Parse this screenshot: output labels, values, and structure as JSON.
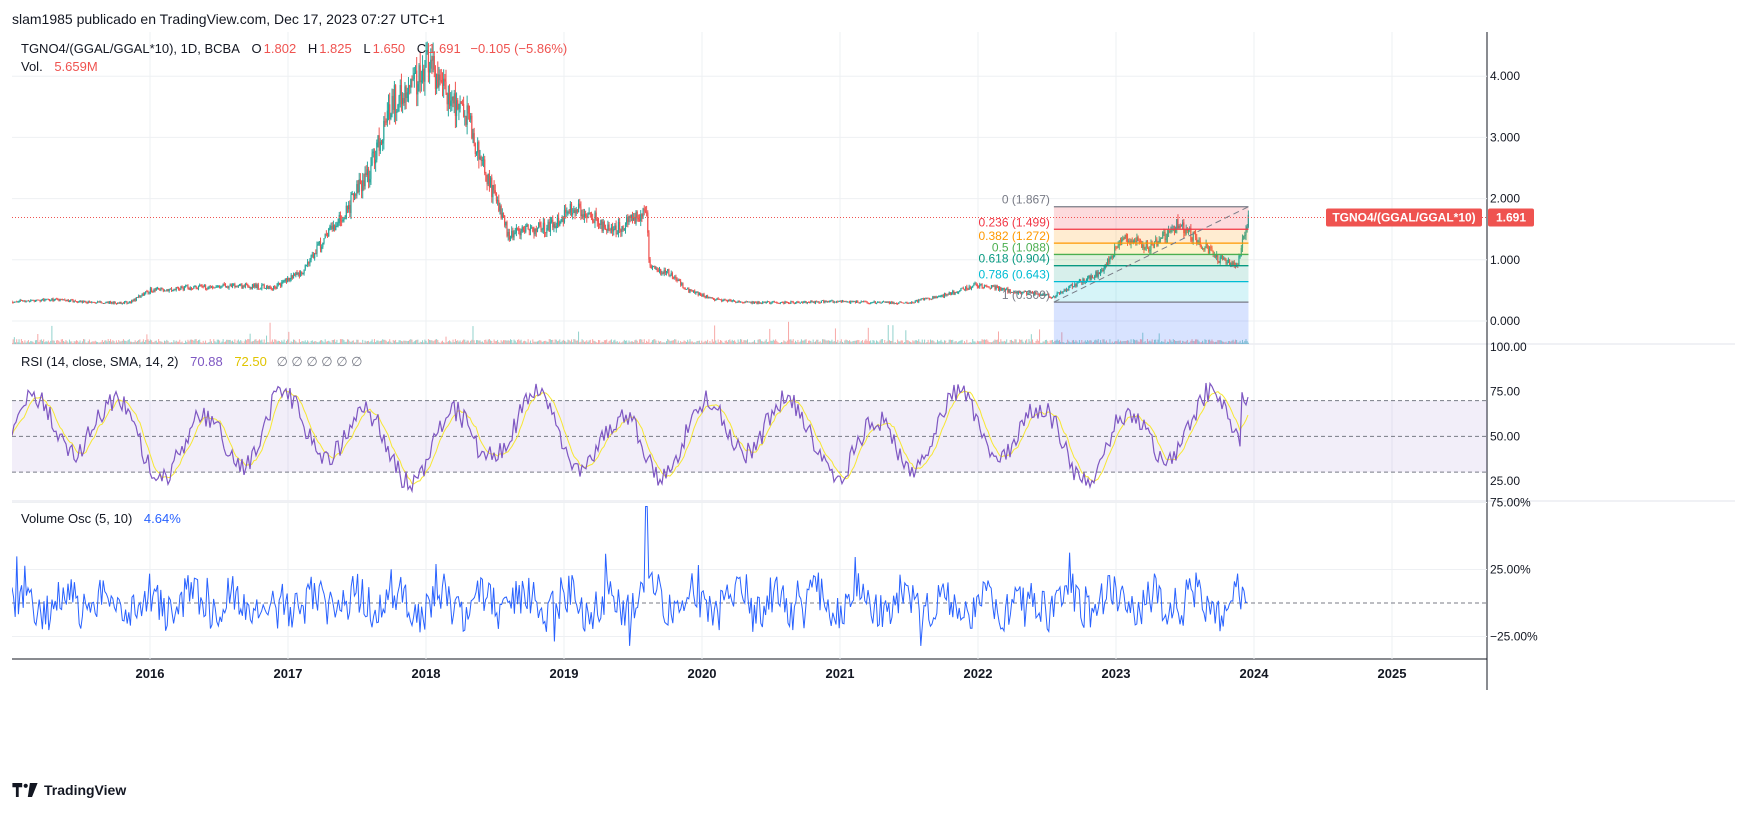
{
  "header": {
    "publisher": "slam1985 publicado en TradingView.com, Dec 17, 2023 07:27 UTC+1"
  },
  "footer": {
    "brand": "TradingView"
  },
  "colors": {
    "up": "#26a69a",
    "down": "#ef5350",
    "rsi": "#7e57c2",
    "rsi_ma": "#f7e733",
    "vol_osc": "#2962ff",
    "grid": "#eef0f3"
  },
  "legend": {
    "symbol": "TGNO4/(GGAL/GGAL*10), 1D, BCBA",
    "o_label": "O",
    "o_value": "1.802",
    "h_label": "H",
    "h_value": "1.825",
    "l_label": "L",
    "l_value": "1.650",
    "c_label": "C",
    "c_value": "1.691",
    "change": "−0.105 (−5.86%)",
    "vol_label": "Vol.",
    "vol_value": "5.659M",
    "rsi_label": "RSI (14, close, SMA, 14, 2)",
    "rsi_value": "70.88",
    "rsi_ma_value": "72.50",
    "rsi_extra": "∅ ∅ ∅ ∅ ∅ ∅",
    "vosc_label": "Volume Osc (5, 10)",
    "vosc_value": "4.64%"
  },
  "last_price_label": {
    "symbol": "TGNO4/(GGAL/GGAL*10)",
    "value": "1.691"
  },
  "chart_data": [
    {
      "type": "candlestick",
      "title": "TGNO4/(GGAL/GGAL*10), 1D, BCBA",
      "x_ticks": [
        "2016",
        "2017",
        "2018",
        "2019",
        "2020",
        "2021",
        "2022",
        "2023",
        "2024",
        "2025"
      ],
      "y_ticks": [
        "0.000",
        "1.000",
        "2.000",
        "3.000",
        "4.000"
      ],
      "ylim": [
        -0.2,
        4.6
      ],
      "last": 1.691,
      "series": [
        {
          "name": "close",
          "x": [
            2015.0,
            2015.3,
            2015.6,
            2015.85,
            2016.0,
            2016.3,
            2016.6,
            2016.9,
            2017.1,
            2017.25,
            2017.45,
            2017.6,
            2017.75,
            2017.9,
            2018.0,
            2018.15,
            2018.3,
            2018.45,
            2018.6,
            2018.75,
            2018.9,
            2019.05,
            2019.2,
            2019.35,
            2019.5,
            2019.6,
            2019.62,
            2019.75,
            2019.9,
            2020.1,
            2020.3,
            2020.6,
            2020.9,
            2021.2,
            2021.5,
            2021.8,
            2022.0,
            2022.2,
            2022.4,
            2022.55,
            2022.7,
            2022.9,
            2023.05,
            2023.25,
            2023.45,
            2023.6,
            2023.75,
            2023.88,
            2023.96
          ],
          "values": [
            0.32,
            0.35,
            0.3,
            0.3,
            0.5,
            0.55,
            0.58,
            0.55,
            0.8,
            1.3,
            1.9,
            2.5,
            3.6,
            3.8,
            4.2,
            3.8,
            3.3,
            2.3,
            1.4,
            1.5,
            1.55,
            1.85,
            1.7,
            1.45,
            1.7,
            1.75,
            0.85,
            0.8,
            0.5,
            0.35,
            0.3,
            0.3,
            0.32,
            0.3,
            0.3,
            0.45,
            0.6,
            0.5,
            0.45,
            0.4,
            0.6,
            0.8,
            1.4,
            1.2,
            1.6,
            1.3,
            1.0,
            0.9,
            1.69
          ]
        }
      ]
    },
    {
      "type": "fibonacci",
      "levels": [
        {
          "ratio": "0",
          "label": "0 (1.867)",
          "price": 1.867,
          "color": "#787b86"
        },
        {
          "ratio": "0.236",
          "label": "0.236 (1.499)",
          "price": 1.499,
          "color": "#f23645"
        },
        {
          "ratio": "0.382",
          "label": "0.382 (1.272)",
          "price": 1.272,
          "color": "#ff9800"
        },
        {
          "ratio": "0.5",
          "label": "0.5 (1.088)",
          "price": 1.088,
          "color": "#4caf50"
        },
        {
          "ratio": "0.618",
          "label": "0.618 (0.904)",
          "price": 0.904,
          "color": "#089981"
        },
        {
          "ratio": "0.786",
          "label": "0.786 (0.643)",
          "price": 0.643,
          "color": "#00bcd4"
        },
        {
          "ratio": "1",
          "label": "1 (0.309)",
          "price": 0.309,
          "color": "#787b86"
        }
      ]
    },
    {
      "type": "line",
      "title": "RSI (14, close, SMA, 14, 2)",
      "y_ticks": [
        "25.00",
        "50.00",
        "75.00",
        "100.00"
      ],
      "ylim": [
        15,
        100
      ],
      "band": [
        30,
        70
      ],
      "last": 70.88
    },
    {
      "type": "line",
      "title": "Volume Osc (5, 10)",
      "y_ticks": [
        "−25.00%",
        "25.00%",
        "75.00%"
      ],
      "ylim": [
        -35,
        80
      ],
      "last": 4.64
    }
  ]
}
